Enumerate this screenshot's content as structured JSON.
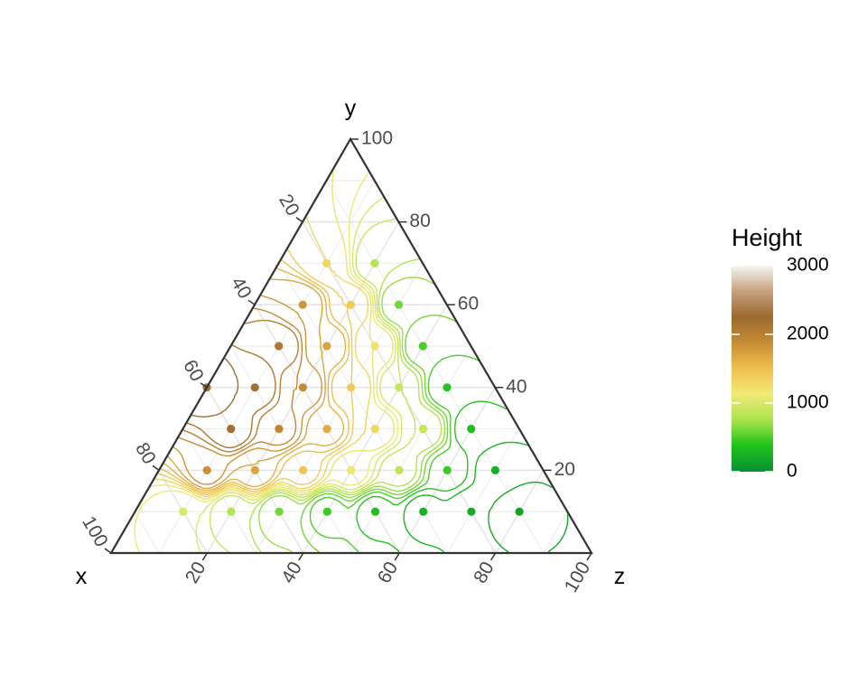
{
  "chart_data": {
    "type": "ternary-contour",
    "axes": {
      "x": {
        "name": "x",
        "ticks": [
          "20",
          "40",
          "60",
          "80",
          "100"
        ]
      },
      "y": {
        "name": "y",
        "ticks": [
          "20",
          "40",
          "60",
          "80",
          "100"
        ]
      },
      "z": {
        "name": "z",
        "ticks": [
          "20",
          "40",
          "60",
          "80",
          "100"
        ]
      }
    },
    "legend": {
      "title": "Height",
      "ticks": [
        "0",
        "1000",
        "2000",
        "3000"
      ],
      "range": [
        0,
        3000
      ],
      "placement": "right",
      "colors": [
        "#0a8f36",
        "#1fc21b",
        "#a9e44b",
        "#f1ea76",
        "#f0c04e",
        "#c88c35",
        "#9b6a2e",
        "#c7a07c",
        "#f5f5f5"
      ]
    },
    "contour_interval": 100,
    "points": [
      {
        "x": 20,
        "y": 70,
        "z": 10,
        "height": 1300
      },
      {
        "x": 10,
        "y": 70,
        "z": 20,
        "height": 800
      },
      {
        "x": 30,
        "y": 60,
        "z": 10,
        "height": 1800
      },
      {
        "x": 20,
        "y": 60,
        "z": 20,
        "height": 1400
      },
      {
        "x": 10,
        "y": 60,
        "z": 30,
        "height": 600
      },
      {
        "x": 40,
        "y": 50,
        "z": 10,
        "height": 2100
      },
      {
        "x": 30,
        "y": 50,
        "z": 20,
        "height": 1700
      },
      {
        "x": 20,
        "y": 50,
        "z": 30,
        "height": 1200
      },
      {
        "x": 10,
        "y": 50,
        "z": 40,
        "height": 500
      },
      {
        "x": 60,
        "y": 40,
        "z": 0,
        "height": 2300
      },
      {
        "x": 50,
        "y": 40,
        "z": 10,
        "height": 2200
      },
      {
        "x": 40,
        "y": 40,
        "z": 20,
        "height": 1900
      },
      {
        "x": 30,
        "y": 40,
        "z": 30,
        "height": 1400
      },
      {
        "x": 20,
        "y": 40,
        "z": 40,
        "height": 900
      },
      {
        "x": 10,
        "y": 40,
        "z": 50,
        "height": 400
      },
      {
        "x": 60,
        "y": 30,
        "z": 10,
        "height": 2200
      },
      {
        "x": 50,
        "y": 30,
        "z": 20,
        "height": 1950
      },
      {
        "x": 40,
        "y": 30,
        "z": 30,
        "height": 1650
      },
      {
        "x": 30,
        "y": 30,
        "z": 40,
        "height": 1300
      },
      {
        "x": 20,
        "y": 30,
        "z": 50,
        "height": 900
      },
      {
        "x": 10,
        "y": 30,
        "z": 60,
        "height": 350
      },
      {
        "x": 70,
        "y": 20,
        "z": 10,
        "height": 1850
      },
      {
        "x": 60,
        "y": 20,
        "z": 20,
        "height": 1700
      },
      {
        "x": 50,
        "y": 20,
        "z": 30,
        "height": 1450
      },
      {
        "x": 40,
        "y": 20,
        "z": 40,
        "height": 1150
      },
      {
        "x": 30,
        "y": 20,
        "z": 50,
        "height": 850
      },
      {
        "x": 20,
        "y": 20,
        "z": 60,
        "height": 450
      },
      {
        "x": 10,
        "y": 20,
        "z": 70,
        "height": 250
      },
      {
        "x": 80,
        "y": 10,
        "z": 10,
        "height": 1000
      },
      {
        "x": 70,
        "y": 10,
        "z": 20,
        "height": 800
      },
      {
        "x": 60,
        "y": 10,
        "z": 30,
        "height": 600
      },
      {
        "x": 50,
        "y": 10,
        "z": 40,
        "height": 450
      },
      {
        "x": 40,
        "y": 10,
        "z": 50,
        "height": 350
      },
      {
        "x": 30,
        "y": 10,
        "z": 60,
        "height": 250
      },
      {
        "x": 20,
        "y": 10,
        "z": 70,
        "height": 200
      },
      {
        "x": 10,
        "y": 10,
        "z": 80,
        "height": 150
      }
    ]
  }
}
